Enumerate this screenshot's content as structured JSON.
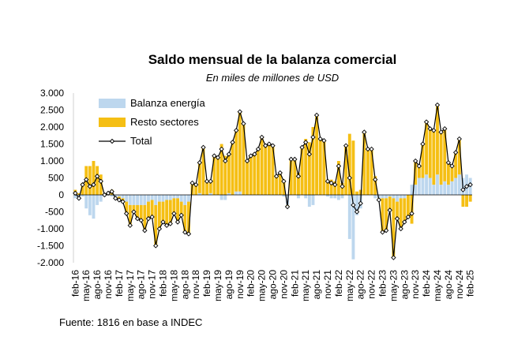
{
  "chart_data": {
    "type": "bar-line",
    "title": "Saldo mensual de la balanza comercial",
    "subtitle": "En miles de millones de USD",
    "source": "Fuente: 1816 en base a INDEC",
    "stacked": true,
    "legend": "top-left",
    "categories": [
      "feb-16",
      null,
      null,
      "may-16",
      null,
      null,
      "ago-16",
      null,
      null,
      "nov-16",
      null,
      null,
      "feb-17",
      null,
      null,
      "may-17",
      null,
      null,
      "ago-17",
      null,
      null,
      "nov-17",
      null,
      null,
      "feb-18",
      null,
      null,
      "may-18",
      null,
      null,
      "ago-18",
      null,
      null,
      "nov-18",
      null,
      null,
      "feb-19",
      null,
      null,
      "may-19",
      null,
      null,
      "ago-19",
      null,
      null,
      "nov-19",
      null,
      null,
      "feb-20",
      null,
      null,
      "may-20",
      null,
      null,
      "ago-20",
      null,
      null,
      "nov-20",
      null,
      null,
      "feb-21",
      null,
      null,
      "may-21",
      null,
      null,
      "ago-21",
      null,
      null,
      "nov-21",
      null,
      null,
      "feb-22",
      null,
      null,
      "may-22",
      null,
      null,
      "ago-22",
      null,
      null,
      "nov-22",
      null,
      null,
      "feb-23",
      null,
      null,
      "may-23",
      null,
      null,
      "ago-23",
      null,
      null,
      "nov-23",
      null,
      null,
      "feb-24",
      null,
      null,
      "may-24",
      null,
      null,
      "ago-24",
      null,
      null,
      "nov-24",
      null,
      null,
      "feb-25"
    ],
    "series": [
      {
        "name": "Balanza energía",
        "type": "bar",
        "color": "#bdd7ee",
        "values": [
          -100,
          -150,
          -50,
          -400,
          -600,
          -700,
          -300,
          -200,
          -50,
          0,
          -50,
          -100,
          -50,
          -100,
          -200,
          -300,
          -300,
          -300,
          -300,
          -300,
          -200,
          -150,
          -300,
          -200,
          -200,
          -150,
          -150,
          -100,
          -100,
          -200,
          -300,
          -200,
          0,
          0,
          50,
          0,
          0,
          50,
          0,
          0,
          -150,
          -150,
          50,
          0,
          100,
          100,
          0,
          0,
          0,
          0,
          0,
          0,
          0,
          0,
          0,
          0,
          0,
          -50,
          -300,
          0,
          0,
          -100,
          0,
          -100,
          -350,
          -300,
          0,
          0,
          0,
          -50,
          -100,
          -100,
          -150,
          -100,
          0,
          -1300,
          -1900,
          -600,
          -400,
          0,
          0,
          0,
          -100,
          -100,
          -100,
          -100,
          -50,
          -100,
          -200,
          -100,
          -100,
          0,
          300,
          300,
          500,
          500,
          600,
          500,
          300,
          600,
          300,
          400,
          300,
          400,
          500,
          600,
          500,
          600,
          500
        ]
      },
      {
        "name": "Resto sectores",
        "type": "bar",
        "color": "#f5bf14",
        "values": [
          150,
          50,
          350,
          850,
          850,
          1000,
          850,
          600,
          50,
          50,
          150,
          0,
          -100,
          -100,
          -350,
          -600,
          -200,
          -400,
          -450,
          -750,
          -500,
          -500,
          -1200,
          -800,
          -600,
          -750,
          -700,
          -450,
          -700,
          -400,
          -800,
          -950,
          350,
          300,
          900,
          1400,
          400,
          350,
          1150,
          1100,
          1500,
          1150,
          1150,
          1550,
          1800,
          2350,
          2100,
          1000,
          1150,
          1200,
          1350,
          1700,
          1450,
          1500,
          1450,
          550,
          650,
          450,
          -50,
          1050,
          1050,
          650,
          1400,
          1650,
          1550,
          2000,
          2350,
          1650,
          1600,
          450,
          450,
          400,
          1000,
          350,
          1450,
          1800,
          1600,
          100,
          150,
          1850,
          1350,
          1350,
          550,
          -50,
          -1000,
          -950,
          -400,
          -1750,
          -500,
          -900,
          -700,
          -650,
          -850,
          700,
          350,
          1000,
          1550,
          1450,
          1600,
          2050,
          1550,
          1550,
          650,
          450,
          750,
          1050,
          -350,
          -350,
          -200
        ]
      },
      {
        "name": "Total",
        "type": "line",
        "color": "#000000",
        "values": [
          50,
          -100,
          300,
          450,
          250,
          300,
          550,
          400,
          0,
          50,
          100,
          -100,
          -150,
          -200,
          -550,
          -900,
          -500,
          -700,
          -750,
          -1050,
          -700,
          -650,
          -1500,
          -1000,
          -800,
          -900,
          -850,
          -550,
          -800,
          -600,
          -1100,
          -1150,
          350,
          300,
          950,
          1400,
          400,
          400,
          1150,
          1100,
          1350,
          1000,
          1200,
          1550,
          1900,
          2450,
          2100,
          1000,
          1150,
          1200,
          1350,
          1700,
          1450,
          1500,
          1450,
          550,
          650,
          400,
          -350,
          1050,
          1050,
          550,
          1400,
          1550,
          1200,
          1700,
          2350,
          1650,
          1600,
          400,
          350,
          300,
          850,
          250,
          1450,
          500,
          -300,
          -500,
          -250,
          1850,
          1350,
          1350,
          450,
          -150,
          -1100,
          -1050,
          -450,
          -1850,
          -700,
          -1000,
          -800,
          -650,
          -550,
          1000,
          850,
          1500,
          2150,
          1950,
          1900,
          2650,
          1850,
          1950,
          950,
          850,
          1250,
          1650,
          150,
          250,
          300
        ]
      }
    ],
    "ylim": [
      -2000,
      3000
    ],
    "yticks": [
      {
        "value": -2000,
        "label": "-2.000"
      },
      {
        "value": -1500,
        "label": "-1.500"
      },
      {
        "value": -1000,
        "label": "-1.000"
      },
      -500,
      0,
      500,
      {
        "value": 1000,
        "label": "1.000"
      },
      {
        "value": 1500,
        "label": "1.500"
      },
      {
        "value": 2000,
        "label": "2.000"
      },
      {
        "value": 2500,
        "label": "2.500"
      },
      {
        "value": 3000,
        "label": "3.000"
      }
    ]
  }
}
